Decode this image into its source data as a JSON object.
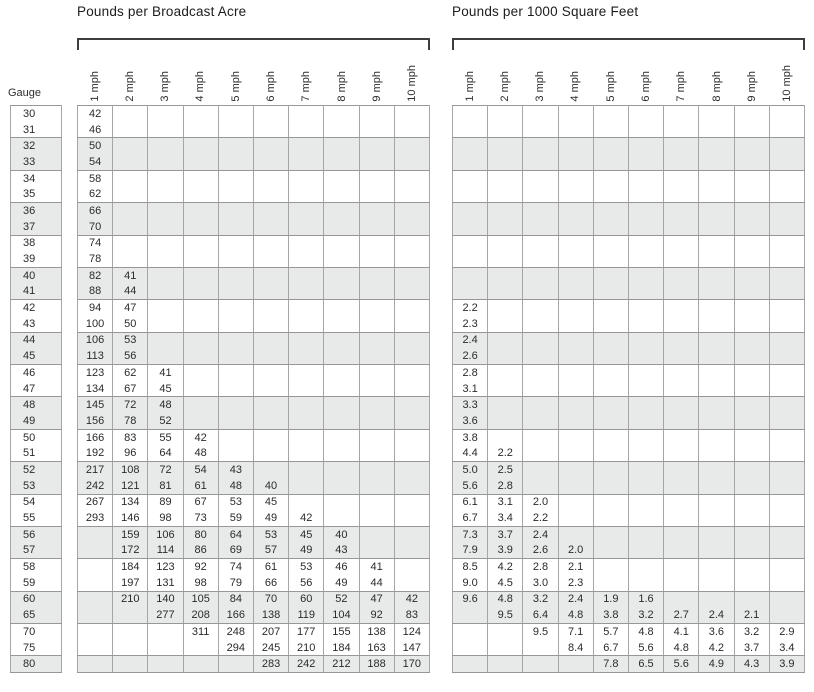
{
  "page": {
    "gauge_label": "Gauge"
  },
  "colors": {
    "shaded_row": "#e8eaea",
    "grid_line": "#a6a6a6",
    "block_border": "#979797",
    "bracket": "#3d3d3d",
    "text": "#2b2b2b",
    "background": "#ffffff"
  },
  "speed_headers": [
    "1 mph",
    "2 mph",
    "3 mph",
    "4 mph",
    "5 mph",
    "6 mph",
    "7 mph",
    "8 mph",
    "9 mph",
    "10 mph"
  ],
  "gauges": [
    "30",
    "31",
    "32",
    "33",
    "34",
    "35",
    "36",
    "37",
    "38",
    "39",
    "40",
    "41",
    "42",
    "43",
    "44",
    "45",
    "46",
    "47",
    "48",
    "49",
    "50",
    "51",
    "52",
    "53",
    "54",
    "55",
    "56",
    "57",
    "58",
    "59",
    "60",
    "65",
    "70",
    "75",
    "80"
  ],
  "chart_data": [
    {
      "type": "table",
      "title": "Pounds per Broadcast Acre",
      "row_header": "Gauge",
      "columns": [
        "1 mph",
        "2 mph",
        "3 mph",
        "4 mph",
        "5 mph",
        "6 mph",
        "7 mph",
        "8 mph",
        "9 mph",
        "10 mph"
      ],
      "rows": [
        [
          "42"
        ],
        [
          "46"
        ],
        [
          "50"
        ],
        [
          "54"
        ],
        [
          "58"
        ],
        [
          "62"
        ],
        [
          "66"
        ],
        [
          "70"
        ],
        [
          "74"
        ],
        [
          "78"
        ],
        [
          "82",
          "41"
        ],
        [
          "88",
          "44"
        ],
        [
          "94",
          "47"
        ],
        [
          "100",
          "50"
        ],
        [
          "106",
          "53"
        ],
        [
          "113",
          "56"
        ],
        [
          "123",
          "62",
          "41"
        ],
        [
          "134",
          "67",
          "45"
        ],
        [
          "145",
          "72",
          "48"
        ],
        [
          "156",
          "78",
          "52"
        ],
        [
          "166",
          "83",
          "55",
          "42"
        ],
        [
          "192",
          "96",
          "64",
          "48"
        ],
        [
          "217",
          "108",
          "72",
          "54",
          "43"
        ],
        [
          "242",
          "121",
          "81",
          "61",
          "48",
          "40"
        ],
        [
          "267",
          "134",
          "89",
          "67",
          "53",
          "45"
        ],
        [
          "293",
          "146",
          "98",
          "73",
          "59",
          "49",
          "42"
        ],
        [
          "",
          "159",
          "106",
          "80",
          "64",
          "53",
          "45",
          "40"
        ],
        [
          "",
          "172",
          "114",
          "86",
          "69",
          "57",
          "49",
          "43"
        ],
        [
          "",
          "184",
          "123",
          "92",
          "74",
          "61",
          "53",
          "46",
          "41"
        ],
        [
          "",
          "197",
          "131",
          "98",
          "79",
          "66",
          "56",
          "49",
          "44"
        ],
        [
          "",
          "210",
          "140",
          "105",
          "84",
          "70",
          "60",
          "52",
          "47",
          "42"
        ],
        [
          "",
          "",
          "277",
          "208",
          "166",
          "138",
          "119",
          "104",
          "92",
          "83"
        ],
        [
          "",
          "",
          "",
          "311",
          "248",
          "207",
          "177",
          "155",
          "138",
          "124"
        ],
        [
          "",
          "",
          "",
          "",
          "294",
          "245",
          "210",
          "184",
          "163",
          "147"
        ],
        [
          "",
          "",
          "",
          "",
          "",
          "283",
          "242",
          "212",
          "188",
          "170"
        ]
      ]
    },
    {
      "type": "table",
      "title": "Pounds per 1000 Square Feet",
      "row_header": "Gauge",
      "columns": [
        "1 mph",
        "2 mph",
        "3 mph",
        "4 mph",
        "5 mph",
        "6 mph",
        "7 mph",
        "8 mph",
        "9 mph",
        "10 mph"
      ],
      "rows": [
        [],
        [],
        [],
        [],
        [],
        [],
        [],
        [],
        [],
        [],
        [],
        [],
        [
          "2.2"
        ],
        [
          "2.3"
        ],
        [
          "2.4"
        ],
        [
          "2.6"
        ],
        [
          "2.8"
        ],
        [
          "3.1"
        ],
        [
          "3.3"
        ],
        [
          "3.6"
        ],
        [
          "3.8"
        ],
        [
          "4.4",
          "2.2"
        ],
        [
          "5.0",
          "2.5"
        ],
        [
          "5.6",
          "2.8"
        ],
        [
          "6.1",
          "3.1",
          "2.0"
        ],
        [
          "6.7",
          "3.4",
          "2.2"
        ],
        [
          "7.3",
          "3.7",
          "2.4"
        ],
        [
          "7.9",
          "3.9",
          "2.6",
          "2.0"
        ],
        [
          "8.5",
          "4.2",
          "2.8",
          "2.1"
        ],
        [
          "9.0",
          "4.5",
          "3.0",
          "2.3"
        ],
        [
          "9.6",
          "4.8",
          "3.2",
          "2.4",
          "1.9",
          "1.6"
        ],
        [
          "",
          "9.5",
          "6.4",
          "4.8",
          "3.8",
          "3.2",
          "2.7",
          "2.4",
          "2.1"
        ],
        [
          "",
          "",
          "9.5",
          "7.1",
          "5.7",
          "4.8",
          "4.1",
          "3.6",
          "3.2",
          "2.9"
        ],
        [
          "",
          "",
          "",
          "8.4",
          "6.7",
          "5.6",
          "4.8",
          "4.2",
          "3.7",
          "3.4"
        ],
        [
          "",
          "",
          "",
          "",
          "7.8",
          "6.5",
          "5.6",
          "4.9",
          "4.3",
          "3.9"
        ]
      ]
    }
  ]
}
